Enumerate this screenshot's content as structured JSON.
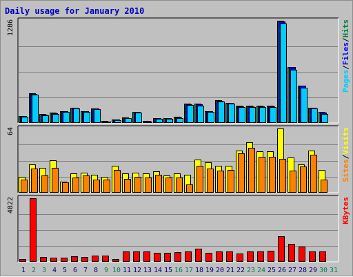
{
  "chart_data": {
    "type": "bar",
    "title": "Daily usage for January 2010",
    "days": [
      "1",
      "2",
      "3",
      "4",
      "5",
      "6",
      "7",
      "8",
      "9",
      "10",
      "11",
      "12",
      "13",
      "14",
      "15",
      "16",
      "17",
      "18",
      "19",
      "20",
      "21",
      "22",
      "23",
      "24",
      "25",
      "26",
      "27",
      "28",
      "29",
      "30",
      "31"
    ],
    "weekend_days": [
      "2",
      "3",
      "9",
      "10",
      "16",
      "17",
      "23",
      "24",
      "30",
      "31"
    ],
    "panels": [
      {
        "id": "hits",
        "max_label": "1286",
        "ylim": [
          0,
          1286
        ],
        "legend": [
          "Pages",
          "Files",
          "Hits"
        ],
        "legend_colors": [
          "#00ccff",
          "#0000ff",
          "#008040"
        ],
        "series": [
          {
            "name": "Hits",
            "color": "#008040",
            "values": [
              90,
              370,
              110,
              130,
              150,
              195,
              150,
              185,
              25,
              45,
              70,
              140,
              30,
              65,
              65,
              75,
              240,
              240,
              150,
              285,
              255,
              215,
              215,
              215,
              215,
              1286,
              705,
              470,
              195,
              135,
              0
            ]
          },
          {
            "name": "Files",
            "color": "#0000ff",
            "values": [
              85,
              365,
              105,
              125,
              145,
              190,
              145,
              180,
              20,
              40,
              65,
              135,
              25,
              60,
              60,
              70,
              235,
              235,
              145,
              280,
              250,
              210,
              210,
              210,
              210,
              1280,
              700,
              465,
              190,
              130,
              0
            ]
          },
          {
            "name": "Pages",
            "color": "#00ccff",
            "values": [
              80,
              355,
              95,
              115,
              135,
              180,
              135,
              170,
              15,
              35,
              60,
              130,
              20,
              55,
              55,
              60,
              225,
              220,
              135,
              270,
              245,
              200,
              200,
              200,
              200,
              1250,
              670,
              445,
              180,
              115,
              0
            ]
          }
        ]
      },
      {
        "id": "sites",
        "max_label": "64",
        "ylim": [
          0,
          64
        ],
        "legend": [
          "Sites",
          "Visits"
        ],
        "legend_colors": [
          "#ff8000",
          "#ffff00"
        ],
        "series": [
          {
            "name": "Visits",
            "color": "#ffff00",
            "values": [
              16,
              28,
              25,
              32,
              11,
              19,
              20,
              18,
              16,
              27,
              19,
              20,
              19,
              21,
              17,
              19,
              18,
              33,
              30,
              27,
              27,
              42,
              50,
              41,
              41,
              64,
              35,
              28,
              42,
              23,
              0
            ]
          },
          {
            "name": "Sites",
            "color": "#ff8000",
            "values": [
              13,
              24,
              17,
              25,
              10,
              15,
              17,
              13,
              13,
              23,
              14,
              16,
              15,
              18,
              15,
              15,
              8,
              27,
              24,
              22,
              23,
              39,
              45,
              36,
              36,
              34,
              22,
              26,
              38,
              13,
              0
            ]
          }
        ]
      },
      {
        "id": "kbytes",
        "max_label": "4822",
        "ylim": [
          0,
          4822
        ],
        "legend": [
          "KBytes"
        ],
        "legend_colors": [
          "#ff0000"
        ],
        "series": [
          {
            "name": "KBytes",
            "color": "#ff0000",
            "values": [
              230,
              4822,
              350,
              330,
              320,
              420,
              380,
              450,
              450,
              210,
              800,
              780,
              780,
              680,
              680,
              720,
              800,
              980,
              700,
              780,
              780,
              640,
              770,
              810,
              860,
              1950,
              1380,
              1160,
              790,
              800,
              0
            ]
          }
        ]
      }
    ]
  }
}
